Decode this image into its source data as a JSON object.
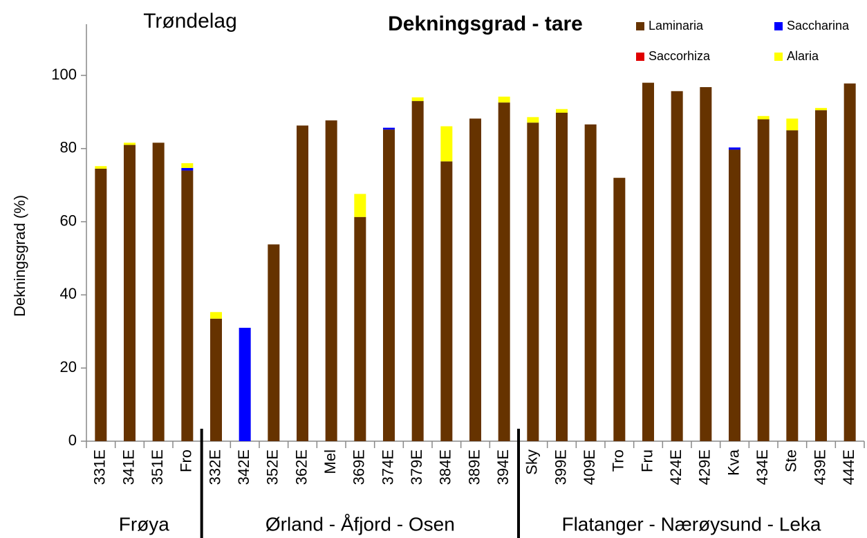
{
  "chart_data": {
    "type": "stacked_bar",
    "title": "Dekningsgrad - tare",
    "subtitle": "Trøndelag",
    "y_label": "Dekningsgrad  (%)",
    "groups": [
      "Frøya",
      "Ørland - Åfjord - Osen",
      "Flatanger - Nærøysund - Leka"
    ],
    "categories": [
      "331E",
      "341E",
      "351E",
      "Fro",
      "332E",
      "342E",
      "352E",
      "362E",
      "Mel",
      "369E",
      "374E",
      "379E",
      "384E",
      "389E",
      "394E",
      "Sky",
      "399E",
      "409E",
      "Tro",
      "Fru",
      "424E",
      "429E",
      "Kva",
      "434E",
      "Ste",
      "439E",
      "444E"
    ],
    "series": [
      {
        "name": "Laminaria",
        "color": "#663300",
        "values": [
          74.5,
          81,
          81.6,
          74,
          33.5,
          0,
          53.8,
          86.3,
          87.7,
          61.3,
          85.2,
          93,
          76.5,
          88.2,
          92.6,
          87.1,
          89.8,
          86.6,
          72,
          98,
          95.7,
          96.8,
          79.7,
          88,
          85,
          90.5,
          97.8
        ]
      },
      {
        "name": "Saccharina",
        "color": "#0000ff",
        "values": [
          0,
          0,
          0,
          0.7,
          0,
          31,
          0,
          0,
          0,
          0,
          0.5,
          0,
          0,
          0,
          0,
          0,
          0,
          0,
          0,
          0,
          0,
          0,
          0.6,
          0,
          0,
          0,
          0
        ]
      },
      {
        "name": "Saccorhiza",
        "color": "#e00000",
        "values": [
          0,
          0,
          0,
          0,
          0,
          0,
          0,
          0,
          0,
          0,
          0,
          0,
          0,
          0,
          0,
          0,
          0,
          0,
          0,
          0,
          0,
          0,
          0,
          0,
          0,
          0,
          0
        ]
      },
      {
        "name": "Alaria",
        "color": "#ffff00",
        "values": [
          0.7,
          0.6,
          0,
          1.3,
          1.8,
          0,
          0,
          0,
          0,
          6.3,
          0,
          1,
          9.6,
          0,
          1.6,
          1.5,
          1,
          0,
          0,
          0,
          0,
          0,
          0,
          0.9,
          3.2,
          0.6,
          0
        ]
      }
    ],
    "ylim": [
      0,
      114
    ],
    "yticks": [
      0,
      20,
      40,
      60,
      80,
      100
    ],
    "grid": false,
    "legend": "top-right"
  }
}
